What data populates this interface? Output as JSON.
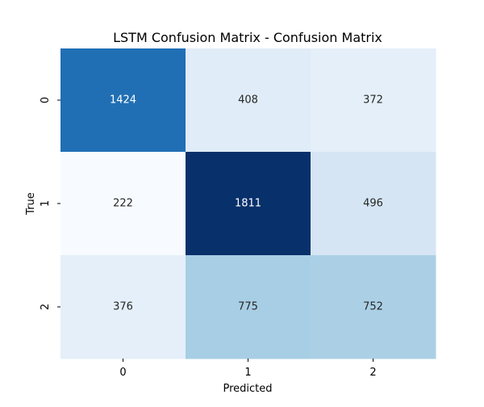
{
  "chart_data": {
    "type": "heatmap",
    "title": "LSTM Confusion Matrix - Confusion Matrix",
    "xlabel": "Predicted",
    "ylabel": "True",
    "x_categories": [
      "0",
      "1",
      "2"
    ],
    "y_categories": [
      "0",
      "1",
      "2"
    ],
    "values": [
      [
        1424,
        408,
        372
      ],
      [
        222,
        1811,
        496
      ],
      [
        376,
        775,
        752
      ]
    ],
    "colormap": "Blues",
    "colorbar": false,
    "grid": false
  }
}
